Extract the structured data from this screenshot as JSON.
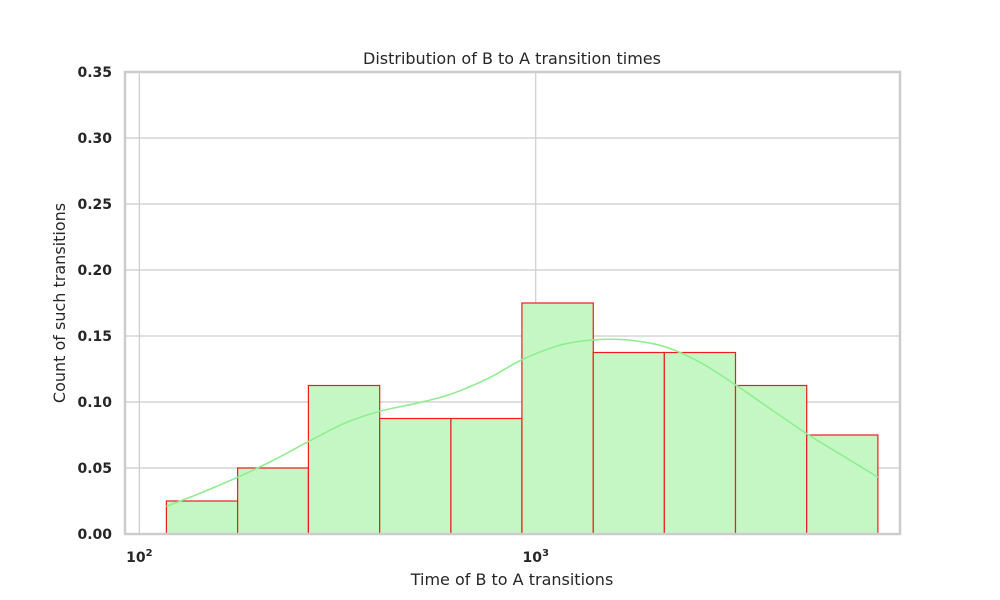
{
  "chart_data": {
    "type": "bar",
    "title": "Distribution of B to A transition times",
    "xlabel": "Time of B to A transitions",
    "ylabel": "Count of such transitions",
    "x_scale": "log",
    "xlim": [
      92,
      8300
    ],
    "ylim": [
      0,
      0.35
    ],
    "yticks": [
      "0.00",
      "0.05",
      "0.10",
      "0.15",
      "0.20",
      "0.25",
      "0.30",
      "0.35"
    ],
    "xticks": [
      {
        "value": 100,
        "base": "10",
        "exponent": "2"
      },
      {
        "value": 1000,
        "base": "10",
        "exponent": "3"
      }
    ],
    "grid": true,
    "bins": [
      {
        "start": 117,
        "end": 177,
        "value": 0.025
      },
      {
        "start": 177,
        "end": 267,
        "value": 0.05
      },
      {
        "start": 267,
        "end": 404,
        "value": 0.1125
      },
      {
        "start": 404,
        "end": 611,
        "value": 0.0875
      },
      {
        "start": 611,
        "end": 923,
        "value": 0.0875
      },
      {
        "start": 923,
        "end": 1397,
        "value": 0.175
      },
      {
        "start": 1397,
        "end": 2111,
        "value": 0.1375
      },
      {
        "start": 2111,
        "end": 3192,
        "value": 0.1375
      },
      {
        "start": 3192,
        "end": 4827,
        "value": 0.1125
      },
      {
        "start": 4827,
        "end": 7300,
        "value": 0.075
      }
    ],
    "kde": {
      "x": [
        117,
        140,
        177,
        215,
        267,
        330,
        404,
        500,
        611,
        760,
        923,
        1150,
        1397,
        1700,
        2111,
        2600,
        3192,
        3900,
        4827,
        5900,
        7300
      ],
      "y": [
        0.021,
        0.03,
        0.043,
        0.055,
        0.07,
        0.084,
        0.093,
        0.099,
        0.106,
        0.118,
        0.132,
        0.143,
        0.147,
        0.147,
        0.142,
        0.13,
        0.113,
        0.095,
        0.076,
        0.06,
        0.043
      ]
    },
    "colors": {
      "bar_fill": "#c5f7c5",
      "bar_edge": "#ee1c1c",
      "kde_line": "#90ee90",
      "grid": "#cccccc",
      "frame": "#cccccc",
      "text": "#262626"
    }
  }
}
